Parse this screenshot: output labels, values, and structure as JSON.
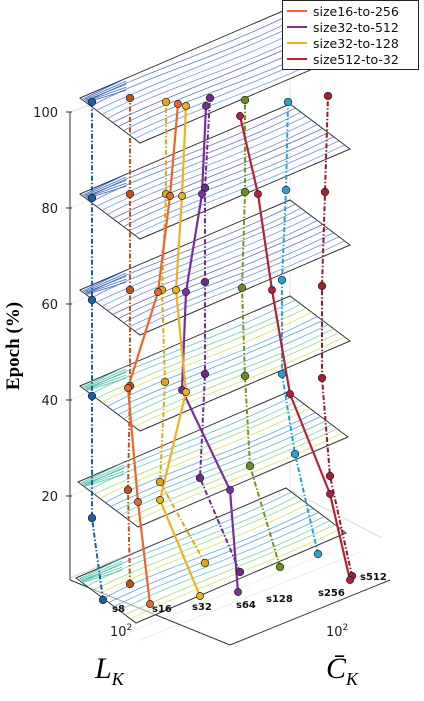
{
  "chart_data": {
    "type": "line",
    "title": "",
    "ylabel": "Epoch (%)",
    "xlabel_left": "L",
    "xlabel_left_sub": "K",
    "xlabel_right": "C̄",
    "xlabel_right_sub": "K",
    "x_tick_left": "10",
    "x_tick_left_exp": "2",
    "x_tick_right": "10",
    "x_tick_right_exp": "2",
    "y_ticks": [
      "20",
      "40",
      "60",
      "80",
      "100"
    ],
    "epochs": [
      0,
      20,
      40,
      60,
      80,
      100
    ],
    "legend": {
      "position": "top-right",
      "items": [
        {
          "label": "size16-to-256",
          "color": "#e8672a"
        },
        {
          "label": "size32-to-512",
          "color": "#7b2d9b"
        },
        {
          "label": "size32-to-128",
          "color": "#f0b21c"
        },
        {
          "label": "size512-to-32",
          "color": "#b5213a"
        }
      ]
    },
    "fixed_series": [
      {
        "name": "s8",
        "label": "s8",
        "color": "#1b5fa8",
        "fill": "#1b5fa8"
      },
      {
        "name": "s16",
        "label": "s16",
        "color": "#c1521d",
        "fill": "#c1521d"
      },
      {
        "name": "s32",
        "label": "s32",
        "color": "#e0a51a",
        "fill": "#e0a51a"
      },
      {
        "name": "s64",
        "label": "s64",
        "color": "#6d2a8a",
        "fill": "#6d2a8a"
      },
      {
        "name": "s128",
        "label": "s128",
        "color": "#77921c",
        "fill": "#6b8e23"
      },
      {
        "name": "s256",
        "label": "s256",
        "color": "#2aa0d2",
        "fill": "#2aa0d2"
      },
      {
        "name": "s512",
        "label": "s512",
        "color": "#8e1b2b",
        "fill": "#a3202f"
      }
    ],
    "grid": true
  }
}
